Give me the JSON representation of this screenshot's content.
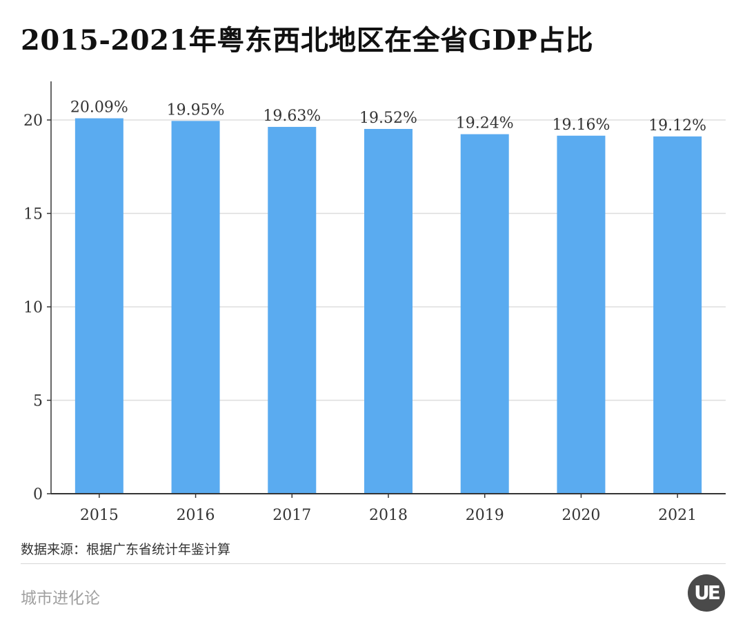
{
  "chart_data": {
    "type": "bar",
    "title": "2015-2021年粤东西北地区在全省GDP占比",
    "categories": [
      "2015",
      "2016",
      "2017",
      "2018",
      "2019",
      "2020",
      "2021"
    ],
    "values": [
      20.09,
      19.95,
      19.63,
      19.52,
      19.24,
      19.16,
      19.12
    ],
    "data_labels": [
      "20.09%",
      "19.95%",
      "19.63%",
      "19.52%",
      "19.24%",
      "19.16%",
      "19.12%"
    ],
    "y_ticks": [
      0,
      5,
      10,
      15,
      20
    ],
    "ylim": [
      0,
      22
    ],
    "xlabel": "",
    "ylabel": "",
    "grid": true,
    "bar_color": "#5aabf0"
  },
  "footer": {
    "source": "数据来源：根据广东省统计年鉴计算",
    "brand": "城市进化论",
    "logo_text": "UE"
  }
}
